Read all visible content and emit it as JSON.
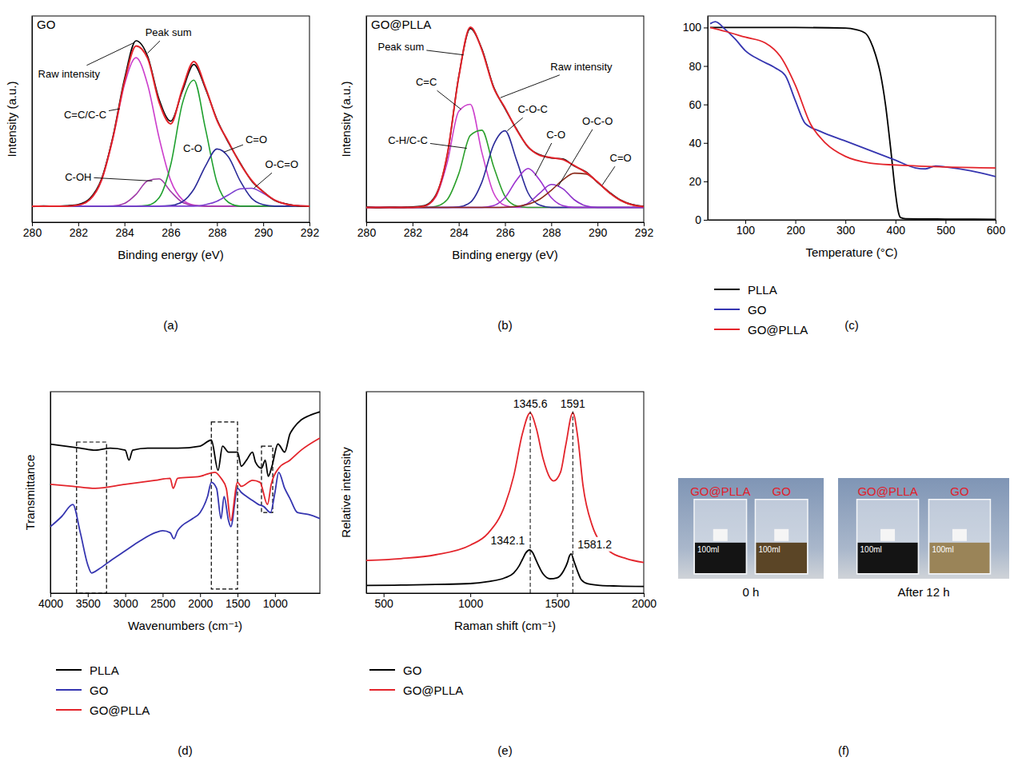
{
  "chart_data": [
    {
      "type": "line",
      "panel": "(a)",
      "title": "GO",
      "x_label": "Binding energy (eV)",
      "y_label": "Intensity (a.u.)",
      "xlim": [
        280,
        292
      ],
      "xticks": [
        280,
        282,
        284,
        286,
        288,
        290,
        292
      ],
      "ylim": [
        0,
        100
      ],
      "tick_labels": "x",
      "x": [
        280,
        280.5,
        281,
        281.5,
        282,
        282.5,
        283,
        283.5,
        284,
        284.5,
        285,
        285.5,
        286,
        286.5,
        287,
        287.5,
        288,
        288.5,
        289,
        289.5,
        290,
        290.5,
        291,
        291.5,
        292
      ],
      "series": [
        {
          "name": "Raw intensity",
          "color": "#000000",
          "values": [
            7.6,
            7.9,
            7.7,
            8,
            8.6,
            11.5,
            20.8,
            41.5,
            69.5,
            88,
            80.5,
            59.5,
            49,
            63.5,
            76.5,
            64.8,
            49.8,
            38.5,
            28.8,
            20,
            14.9,
            10.5,
            8.9,
            7.9,
            7.7
          ]
        },
        {
          "name": "Peak sum",
          "color": "#e3242b",
          "values": [
            7.8,
            7.8,
            7.8,
            7.8,
            8.3,
            11,
            20.2,
            40.9,
            68.1,
            85.5,
            79.5,
            58.1,
            47.7,
            64.6,
            77.9,
            65.5,
            49.4,
            38.9,
            28.5,
            20.3,
            14.7,
            10.7,
            8.7,
            8,
            7.8
          ]
        },
        {
          "name": "C=C/C-C",
          "color": "#cc3fcc",
          "values": [
            7.8,
            7.8,
            7.8,
            7.8,
            8.3,
            11,
            20.2,
            40.8,
            66.8,
            79.8,
            66.8,
            40.8,
            20.2,
            11,
            8.3,
            7.8,
            7.8,
            7.8,
            7.8,
            7.8,
            7.8,
            7.8,
            7.8,
            7.8,
            7.8
          ]
        },
        {
          "name": "C-OH",
          "color": "#a03aa8",
          "values": [
            7.8,
            7.8,
            7.8,
            7.8,
            7.8,
            7.8,
            7.8,
            7.9,
            9.1,
            13.5,
            20.1,
            21,
            14.9,
            9.7,
            8.1,
            7.8,
            7.8,
            7.8,
            7.8,
            7.8,
            7.8,
            7.8,
            7.8,
            7.8,
            7.8
          ]
        },
        {
          "name": "C-O",
          "color": "#1fa02f",
          "values": [
            7.8,
            7.8,
            7.8,
            7.8,
            7.8,
            7.8,
            7.8,
            7.8,
            7.8,
            7.8,
            8.2,
            11.9,
            27.9,
            57.4,
            68.9,
            45.4,
            19.3,
            9.6,
            7.8,
            7.8,
            7.8,
            7.8,
            7.8,
            7.8,
            7.8
          ]
        },
        {
          "name": "C=O",
          "color": "#2b2b99",
          "values": [
            7.8,
            7.8,
            7.8,
            7.8,
            7.8,
            7.8,
            7.8,
            7.8,
            7.8,
            7.8,
            7.8,
            7.8,
            8.1,
            9.9,
            16,
            27.2,
            35.5,
            31.6,
            20.1,
            11.6,
            8.5,
            7.8,
            7.8,
            7.8,
            7.8
          ]
        },
        {
          "name": "O-C=O",
          "color": "#7b3fd0",
          "values": [
            7.8,
            7.8,
            7.8,
            7.8,
            7.8,
            7.8,
            7.8,
            7.8,
            7.8,
            7.8,
            7.8,
            7.8,
            7.8,
            7.8,
            7.8,
            8.5,
            10.2,
            13.3,
            16.2,
            16.5,
            14,
            10.7,
            8.7,
            8,
            7.8
          ]
        }
      ]
    },
    {
      "type": "line",
      "panel": "(b)",
      "title": "GO@PLLA",
      "x_label": "Binding energy (eV)",
      "y_label": "Intensity (a.u.)",
      "xlim": [
        280,
        292
      ],
      "xticks": [
        280,
        282,
        284,
        286,
        288,
        290,
        292
      ],
      "ylim": [
        0,
        106
      ],
      "tick_labels": "x",
      "x": [
        280,
        280.5,
        281,
        281.5,
        282,
        282.5,
        283,
        283.5,
        284,
        284.5,
        285,
        285.5,
        286,
        286.5,
        287,
        287.5,
        288,
        288.5,
        289,
        289.5,
        290,
        290.5,
        291,
        291.5,
        292
      ],
      "series": [
        {
          "name": "Raw intensity",
          "color": "#000000",
          "values": [
            7.8,
            7.5,
            7.7,
            7.6,
            7.9,
            8.5,
            13.8,
            34.2,
            74.9,
            99.6,
            89.1,
            69.8,
            58.4,
            47.9,
            38.5,
            34.7,
            33.0,
            32.5,
            28.8,
            25.9,
            20.5,
            15.6,
            11.4,
            9.1,
            8.2
          ]
        },
        {
          "name": "Peak sum",
          "color": "#e3242b",
          "values": [
            7.6,
            7.6,
            7.6,
            7.6,
            7.6,
            8.2,
            13.4,
            34.6,
            74.6,
            100.2,
            88.6,
            69.4,
            58.8,
            47.6,
            38.8,
            34.4,
            33.2,
            32.2,
            29.1,
            25.6,
            20.7,
            15.3,
            11.2,
            8.9,
            8
          ]
        },
        {
          "name": "C=C",
          "color": "#cc3fcc",
          "values": [
            7.6,
            7.6,
            7.6,
            7.6,
            7.6,
            8.2,
            12.9,
            30.6,
            57,
            60.6,
            35.9,
            15.2,
            8.6,
            7.6,
            7.6,
            7.6,
            7.6,
            7.6,
            7.6,
            7.6,
            7.6,
            7.6,
            7.6,
            7.6,
            7.6
          ]
        },
        {
          "name": "C-H/C-C",
          "color": "#2ca02c",
          "values": [
            7.6,
            7.6,
            7.6,
            7.6,
            7.6,
            7.6,
            8.1,
            11.6,
            24.9,
            44.6,
            47.3,
            28.9,
            13.3,
            8.4,
            7.6,
            7.6,
            7.6,
            7.6,
            7.6,
            7.6,
            7.6,
            7.6,
            7.6,
            7.6,
            7.6
          ]
        },
        {
          "name": "C-O-C",
          "color": "#2b2b99",
          "values": [
            7.6,
            7.6,
            7.6,
            7.6,
            7.6,
            7.6,
            7.6,
            7.6,
            7.9,
            10.2,
            20.6,
            39.6,
            47,
            31.9,
            15,
            8.8,
            7.6,
            7.6,
            7.6,
            7.6,
            7.6,
            7.6,
            7.6,
            7.6,
            7.6
          ]
        },
        {
          "name": "C-O",
          "color": "#9b30d0",
          "values": [
            7.6,
            7.6,
            7.6,
            7.6,
            7.6,
            7.6,
            7.6,
            7.6,
            7.6,
            7.6,
            7.6,
            8.5,
            12.6,
            21.7,
            27.6,
            21.7,
            12.6,
            8.5,
            7.6,
            7.6,
            7.6,
            7.6,
            7.6,
            7.6,
            7.6
          ]
        },
        {
          "name": "O-C-O",
          "color": "#8b2fc9",
          "values": [
            7.6,
            7.6,
            7.6,
            7.6,
            7.6,
            7.6,
            7.6,
            7.6,
            7.6,
            7.6,
            7.6,
            7.6,
            7.6,
            7.9,
            9.8,
            14.9,
            19.4,
            17.2,
            11.5,
            8.4,
            7.6,
            7.6,
            7.6,
            7.6,
            7.6
          ]
        },
        {
          "name": "C=O",
          "color": "#8b2a1a",
          "values": [
            7.6,
            7.6,
            7.6,
            7.6,
            7.6,
            7.6,
            7.6,
            7.6,
            7.6,
            7.6,
            7.6,
            7.6,
            7.7,
            8.1,
            9.2,
            11.8,
            16.4,
            21.7,
            25.2,
            24.8,
            20.7,
            15.3,
            11.2,
            8.9,
            8
          ]
        }
      ]
    },
    {
      "type": "line",
      "panel": "(c)",
      "x_label": "Temperature (°C)",
      "xlim": [
        25,
        600
      ],
      "xticks": [
        100,
        200,
        300,
        400,
        500,
        600
      ],
      "ylim": [
        0,
        106
      ],
      "yticks": [
        0,
        20,
        40,
        60,
        80,
        100
      ],
      "legend": "bottom",
      "series": [
        {
          "name": "PLLA",
          "color": "#000000",
          "x": [
            30,
            100,
            200,
            300,
            320,
            340,
            350,
            360,
            370,
            380,
            390,
            400,
            405,
            410,
            420,
            500,
            600
          ],
          "values": [
            100,
            100,
            100,
            99.7,
            99,
            97,
            93,
            86,
            76,
            60,
            38,
            14,
            5,
            1.2,
            0.6,
            0.4,
            0.3
          ]
        },
        {
          "name": "GO",
          "color": "#3535b0",
          "x": [
            30,
            40,
            60,
            80,
            100,
            130,
            160,
            180,
            200,
            220,
            250,
            300,
            350,
            400,
            440,
            460,
            480,
            500,
            550,
            600
          ],
          "values": [
            102,
            103,
            99,
            94,
            88,
            83,
            79,
            75,
            62,
            50,
            46,
            41,
            36,
            31,
            27,
            26.5,
            28,
            27.5,
            25.5,
            22.5
          ]
        },
        {
          "name": "GO@PLLA",
          "color": "#e3242b",
          "x": [
            30,
            60,
            100,
            140,
            170,
            200,
            230,
            260,
            300,
            350,
            400,
            500,
            600
          ],
          "values": [
            100,
            98,
            95,
            92,
            85,
            70,
            50,
            40,
            33,
            29.5,
            28.5,
            27.5,
            27
          ]
        }
      ]
    },
    {
      "type": "line",
      "panel": "(d)",
      "x_label": "Wavenumbers (cm⁻¹)",
      "y_label": "Transmittance",
      "xlim": [
        4000,
        400
      ],
      "xticks": [
        4000,
        3500,
        3000,
        2500,
        2000,
        1500,
        1000
      ],
      "ylim": [
        0,
        100
      ],
      "tick_labels": "x",
      "legend": "bottom",
      "boxes": [
        {
          "x": [
            3650,
            3250
          ],
          "y": [
            0,
            75
          ]
        },
        {
          "x": [
            1850,
            1500
          ],
          "y": [
            2,
            85
          ]
        },
        {
          "x": [
            1180,
            1030
          ],
          "y": [
            40,
            73
          ]
        }
      ],
      "series": [
        {
          "name": "PLLA",
          "color": "#000000",
          "x": [
            4000,
            3800,
            3600,
            3400,
            3200,
            3000,
            2950,
            2900,
            2700,
            2500,
            2300,
            2000,
            1850,
            1760,
            1700,
            1620,
            1500,
            1450,
            1380,
            1300,
            1260,
            1180,
            1130,
            1090,
            1040,
            960,
            870,
            800,
            750,
            650,
            550,
            400
          ],
          "values": [
            74,
            73,
            72,
            71,
            72,
            71,
            66,
            71,
            72,
            72,
            72,
            73,
            76,
            61,
            73,
            70,
            70,
            63,
            66,
            70,
            65,
            62,
            66,
            58,
            63,
            74,
            70,
            79,
            82,
            86,
            88,
            90
          ]
        },
        {
          "name": "GO",
          "color": "#3535b0",
          "x": [
            4000,
            3850,
            3700,
            3600,
            3500,
            3450,
            3350,
            3200,
            3000,
            2800,
            2600,
            2500,
            2400,
            2350,
            2300,
            2100,
            2000,
            1900,
            1850,
            1780,
            1720,
            1680,
            1620,
            1590,
            1500,
            1450,
            1380,
            1300,
            1220,
            1150,
            1060,
            1000,
            950,
            870,
            800,
            700,
            550,
            400
          ],
          "values": [
            33,
            38,
            44,
            30,
            14,
            10,
            12,
            16,
            21,
            26,
            30,
            31,
            30,
            27,
            31,
            37,
            40,
            48,
            55,
            52,
            37,
            48,
            36,
            33,
            52,
            50,
            48,
            46,
            44,
            43,
            40,
            50,
            60,
            52,
            47,
            40,
            39,
            37
          ]
        },
        {
          "name": "GO@PLLA",
          "color": "#e3242b",
          "x": [
            4000,
            3700,
            3400,
            3000,
            2600,
            2400,
            2360,
            2300,
            2000,
            1800,
            1720,
            1650,
            1590,
            1500,
            1450,
            1300,
            1200,
            1100,
            1050,
            950,
            800,
            650,
            400
          ],
          "values": [
            54,
            53,
            52,
            54,
            56,
            57,
            52,
            57,
            58,
            60,
            57,
            52,
            36,
            55,
            53,
            56,
            55,
            44,
            54,
            62,
            66,
            71,
            77
          ]
        }
      ]
    },
    {
      "type": "line",
      "panel": "(e)",
      "x_label": "Raman shift (cm⁻¹)",
      "y_label": "Relative intensity",
      "xlim": [
        400,
        2000
      ],
      "xticks": [
        500,
        1000,
        1500,
        2000
      ],
      "ylim": [
        0,
        105
      ],
      "tick_labels": "x",
      "legend": "bottom",
      "series": [
        {
          "name": "GO",
          "color": "#000000",
          "peaks": [
            1342.1,
            1581.2
          ],
          "x": [
            400,
            600,
            800,
            1000,
            1100,
            1200,
            1250,
            1280,
            1300,
            1320,
            1342.1,
            1360,
            1380,
            1420,
            1460,
            1500,
            1540,
            1560,
            1570,
            1581.2,
            1600,
            1620,
            1640,
            1680,
            1750,
            1850,
            2000
          ],
          "values": [
            4,
            4.2,
            4.5,
            5,
            6,
            8,
            10.5,
            14,
            17.5,
            21,
            22.5,
            21,
            17,
            10,
            7.5,
            8,
            12,
            16,
            19,
            20.5,
            16,
            11,
            7,
            4.8,
            4,
            3.7,
            3.5
          ]
        },
        {
          "name": "GO@PLLA",
          "color": "#e3242b",
          "peaks": [
            1345.6,
            1591
          ],
          "x": [
            400,
            600,
            800,
            1000,
            1100,
            1200,
            1250,
            1300,
            1345.6,
            1380,
            1420,
            1460,
            1480,
            1520,
            1550,
            1591,
            1620,
            1650,
            1700,
            1800,
            1900,
            2000
          ],
          "values": [
            17,
            18,
            20,
            25,
            31,
            46,
            61,
            83,
            94,
            86,
            70,
            60,
            58.5,
            63,
            77,
            94,
            81,
            56,
            36,
            22,
            18,
            16
          ]
        }
      ]
    }
  ],
  "photos": {
    "panel": "(f)",
    "images": [
      {
        "caption": "0 h",
        "beakers": [
          {
            "label": "GO@PLLA",
            "volume": "100ml",
            "color": "#141414"
          },
          {
            "label": "GO",
            "volume": "100ml",
            "color": "#5b4526"
          }
        ]
      },
      {
        "caption": "After 12 h",
        "beakers": [
          {
            "label": "GO@PLLA",
            "volume": "100ml",
            "color": "#141414"
          },
          {
            "label": "GO",
            "volume": "100ml",
            "color": "#9a8458"
          }
        ]
      }
    ]
  }
}
